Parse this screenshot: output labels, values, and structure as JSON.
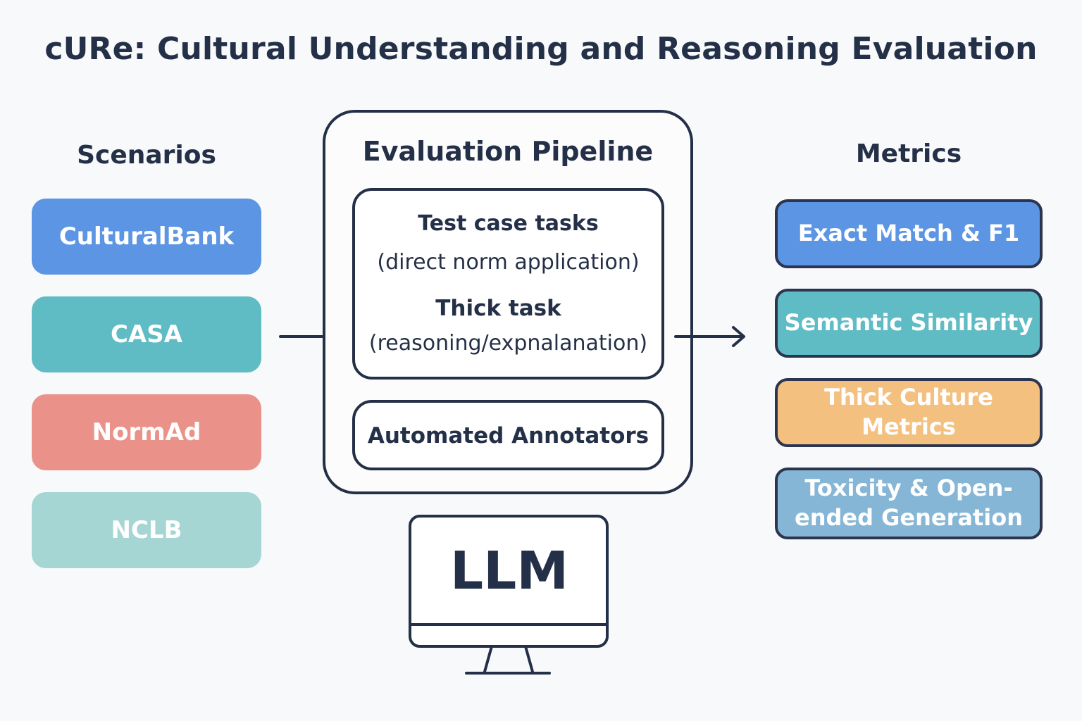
{
  "title": "cURe: Cultural Understanding and Reasoning Evaluation",
  "scenarios": {
    "heading": "Scenarios",
    "items": [
      {
        "label": "CulturalBank",
        "color": "#5b95e3"
      },
      {
        "label": "CASA",
        "color": "#5fbcc4"
      },
      {
        "label": "NormAd",
        "color": "#ea9289"
      },
      {
        "label": "NCLB",
        "color": "#a5d6d3"
      }
    ]
  },
  "pipeline": {
    "heading": "Evaluation Pipeline",
    "task1_title": "Test case tasks",
    "task1_sub": "(direct norm application)",
    "task2_title": "Thick task",
    "task2_sub": "(reasoning/expnalanation)",
    "annotators": "Automated Annotators"
  },
  "llm": {
    "label": "LLM"
  },
  "metrics": {
    "heading": "Metrics",
    "items": [
      {
        "label": "Exact Match & F1",
        "color": "#5b95e3"
      },
      {
        "label": "Semantic Similarity",
        "color": "#5fbcc4"
      },
      {
        "label": "Thick Culture Metrics",
        "color": "#f3c07f"
      },
      {
        "label": "Toxicity & Open-ended Generation",
        "color": "#86b6d6"
      }
    ]
  }
}
